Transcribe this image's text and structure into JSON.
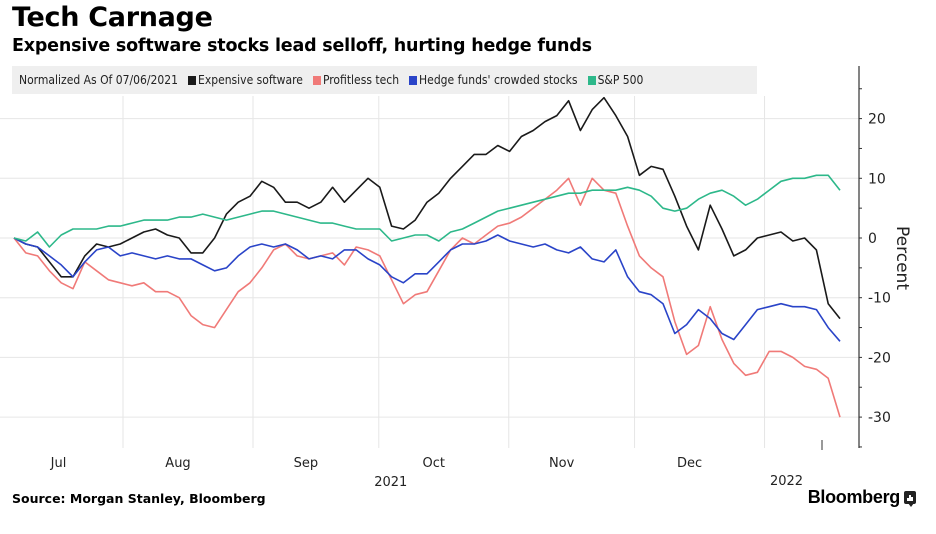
{
  "title": "Tech Carnage",
  "subtitle": "Expensive software stocks lead selloff, hurting hedge funds",
  "source": "Source: Morgan Stanley, Bloomberg",
  "brand": "Bloomberg",
  "brand_icon": "bloomberg-chart-icon",
  "chart_data": {
    "type": "line",
    "title": "Tech Carnage",
    "subtitle": "Expensive software stocks lead selloff, hurting hedge funds",
    "note": "Normalized As Of 07/06/2021",
    "xlabel": "",
    "ylabel": "Percent",
    "ylim": [
      -36,
      29
    ],
    "yticks": [
      20,
      10,
      0,
      -10,
      -20,
      -30
    ],
    "ytick_labels": [
      "20",
      "10",
      "0",
      "-10",
      "-20",
      "-30"
    ],
    "y_axis_side": "right",
    "grid": true,
    "legend_position": "top-left",
    "x_start": "2021-07-06",
    "x_end": "2022-01-19",
    "x_month_ticks": [
      {
        "label": "Jul",
        "date": "2021-07-01"
      },
      {
        "label": "Aug",
        "date": "2021-08-01"
      },
      {
        "label": "Sep",
        "date": "2021-09-01"
      },
      {
        "label": "Oct",
        "date": "2021-10-01"
      },
      {
        "label": "Nov",
        "date": "2021-11-01"
      },
      {
        "label": "Dec",
        "date": "2021-12-01"
      },
      {
        "label": "",
        "date": "2022-01-01"
      }
    ],
    "x_year_labels": [
      {
        "label": "2021",
        "date": "2021-10-01"
      },
      {
        "label": "2022",
        "date": "2022-01-01"
      }
    ],
    "series": [
      {
        "name": "Expensive software",
        "color": "#1a1a1a",
        "values": [
          0,
          -1,
          -1.5,
          -4,
          -6.5,
          -6.5,
          -3,
          -1,
          -1.5,
          -1,
          0,
          1,
          1.5,
          0.5,
          0,
          -2.5,
          -2.5,
          0,
          4,
          6,
          7,
          9.5,
          8.5,
          6,
          6,
          5,
          6,
          8.5,
          6,
          8,
          10,
          8.5,
          2,
          1.5,
          3,
          6,
          7.5,
          10,
          12,
          14,
          14,
          15.5,
          14.5,
          17,
          18,
          19.5,
          20.5,
          23,
          18,
          21.5,
          23.5,
          20.5,
          17,
          10.5,
          12,
          11.5,
          7,
          2,
          -2,
          5.5,
          1.5,
          -3,
          -2,
          0,
          0.5,
          1,
          -0.5,
          0,
          -2,
          -11,
          -13.5
        ]
      },
      {
        "name": "Profitless tech",
        "color": "#f07a78",
        "values": [
          0,
          -2.5,
          -3,
          -5.5,
          -7.5,
          -8.5,
          -4,
          -5.5,
          -7,
          -7.5,
          -8,
          -7.5,
          -9,
          -9,
          -10,
          -13,
          -14.5,
          -15,
          -12,
          -9,
          -7.5,
          -5,
          -2,
          -1,
          -3,
          -3.5,
          -3,
          -2.5,
          -4.5,
          -1.5,
          -2,
          -3,
          -7,
          -11,
          -9.5,
          -9,
          -5.5,
          -2,
          0,
          -1,
          0.5,
          2,
          2.5,
          3.5,
          5,
          6.5,
          8,
          10,
          5.5,
          10,
          8,
          7.5,
          2,
          -3,
          -5,
          -6.5,
          -14,
          -19.5,
          -18,
          -11.5,
          -17,
          -21,
          -23,
          -22.5,
          -19,
          -19,
          -20,
          -21.5,
          -22,
          -23.5,
          -30
        ]
      },
      {
        "name": "Hedge funds' crowded stocks",
        "color": "#2a44c8",
        "values": [
          0,
          -1,
          -1.5,
          -3,
          -4.5,
          -6.5,
          -4,
          -2,
          -1.5,
          -3,
          -2.5,
          -3,
          -3.5,
          -3,
          -3.5,
          -3.5,
          -4.5,
          -5.5,
          -5,
          -3,
          -1.5,
          -1,
          -1.5,
          -1,
          -2,
          -3.5,
          -3,
          -3.5,
          -2,
          -2,
          -3.5,
          -4.5,
          -6.5,
          -7.5,
          -6,
          -6,
          -4,
          -2,
          -1,
          -1,
          -0.5,
          0.5,
          -0.5,
          -1,
          -1.5,
          -1,
          -2,
          -2.5,
          -1.5,
          -3.5,
          -4,
          -2,
          -6.5,
          -9,
          -9.5,
          -11,
          -16,
          -14.5,
          -12,
          -13.5,
          -16,
          -17,
          -14.5,
          -12,
          -11.5,
          -11,
          -11.5,
          -11.5,
          -12,
          -15,
          -17.3
        ]
      },
      {
        "name": "S&P 500",
        "color": "#2db88a",
        "values": [
          0,
          -0.5,
          1,
          -1.5,
          0.5,
          1.5,
          1.5,
          1.5,
          2,
          2,
          2.5,
          3,
          3,
          3,
          3.5,
          3.5,
          4,
          3.5,
          3,
          3.5,
          4,
          4.5,
          4.5,
          4,
          3.5,
          3,
          2.5,
          2.5,
          2,
          1.5,
          1.5,
          1.5,
          -0.5,
          0,
          0.5,
          0.5,
          -0.5,
          1,
          1.5,
          2.5,
          3.5,
          4.5,
          5,
          5.5,
          6,
          6.5,
          7,
          7.5,
          7.5,
          8,
          8,
          8,
          8.5,
          8,
          7,
          5,
          4.5,
          5,
          6.5,
          7.5,
          8,
          7,
          5.5,
          6.5,
          8,
          9.5,
          10,
          10,
          10.5,
          10.5,
          8
        ]
      }
    ]
  }
}
